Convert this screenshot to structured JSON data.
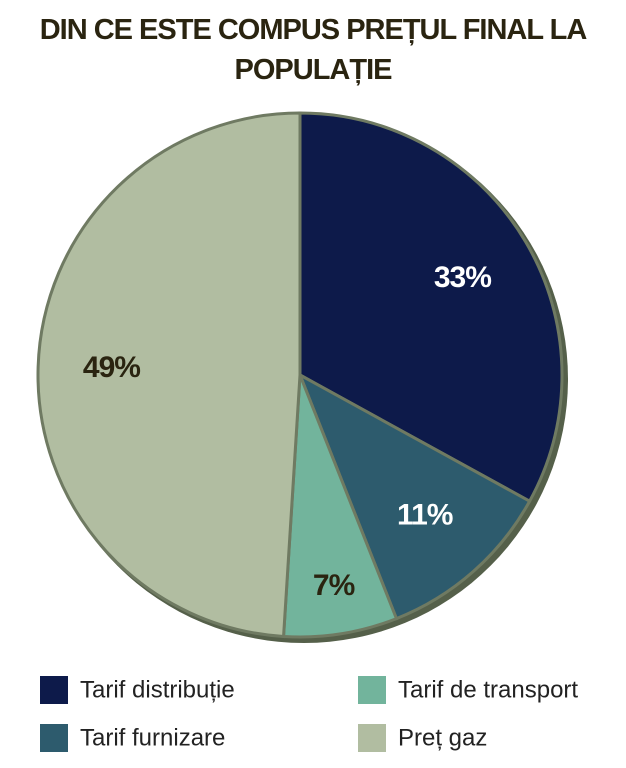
{
  "chart_data": {
    "type": "pie",
    "title": "DIN CE ESTE COMPUS PREȚUL FINAL LA POPULAȚIE",
    "categories": [
      "Tarif distribuție",
      "Tarif furnizare",
      "Tarif de transport",
      "Preț gaz"
    ],
    "values": [
      33,
      11,
      7,
      49
    ],
    "value_labels": [
      "33%",
      "11%",
      "7%",
      "49%"
    ],
    "colors": [
      "#0d1a4a",
      "#2d5b6d",
      "#72b49c",
      "#b1bda1"
    ]
  }
}
